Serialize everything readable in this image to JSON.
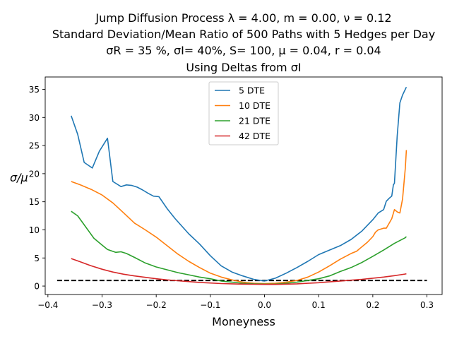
{
  "chart_data": {
    "type": "line",
    "title_lines": [
      "Jump Diffusion Process  λ =  4.00, m =  0.00, ν =  0.12",
      "Standard Deviation/Mean Ratio of 500 Paths with 5 Hedges per Day",
      "σR = 35 %, σI= 40%, S= 100, μ = 0.04, r = 0.04",
      "Using Deltas from σI"
    ],
    "xlabel": "Moneyness",
    "ylabel": "σ/μ",
    "xlim": [
      -0.405,
      0.328
    ],
    "ylim": [
      -1.5,
      37.2
    ],
    "xticks": [
      -0.4,
      -0.3,
      -0.2,
      -0.1,
      0.0,
      0.1,
      0.2,
      0.3
    ],
    "xtick_labels": [
      "−0.4",
      "−0.3",
      "−0.2",
      "−0.1",
      "0.0",
      "0.1",
      "0.2",
      "0.3"
    ],
    "yticks": [
      0,
      5,
      10,
      15,
      20,
      25,
      30,
      35
    ],
    "ytick_labels": [
      "0",
      "5",
      "10",
      "15",
      "20",
      "25",
      "30",
      "35"
    ],
    "grid": false,
    "legend_position": "top-center",
    "reference_line": {
      "y": 1.0,
      "x_range": [
        -0.383,
        0.3
      ],
      "style": "dashed",
      "color": "#000000"
    },
    "series": [
      {
        "name": "5 DTE",
        "color": "#1f77b4",
        "x": [
          -0.357,
          -0.345,
          -0.333,
          -0.318,
          -0.305,
          -0.29,
          -0.28,
          -0.265,
          -0.255,
          -0.245,
          -0.235,
          -0.225,
          -0.215,
          -0.205,
          -0.195,
          -0.18,
          -0.165,
          -0.14,
          -0.12,
          -0.1,
          -0.08,
          -0.06,
          -0.04,
          -0.02,
          0.0,
          0.02,
          0.04,
          0.06,
          0.08,
          0.1,
          0.12,
          0.14,
          0.16,
          0.18,
          0.2,
          0.21,
          0.22,
          0.225,
          0.23,
          0.235,
          0.238,
          0.24,
          0.245,
          0.25,
          0.255,
          0.262
        ],
        "y": [
          30.3,
          27.0,
          22.0,
          21.0,
          24.0,
          26.3,
          18.6,
          17.7,
          18.0,
          17.9,
          17.6,
          17.1,
          16.5,
          16.0,
          15.9,
          13.8,
          12.0,
          9.3,
          7.5,
          5.4,
          3.6,
          2.5,
          1.8,
          1.2,
          0.9,
          1.4,
          2.3,
          3.3,
          4.4,
          5.6,
          6.4,
          7.2,
          8.3,
          9.8,
          11.8,
          13.0,
          13.6,
          15.1,
          15.6,
          16.0,
          18.0,
          18.3,
          26.7,
          32.6,
          34.0,
          35.4
        ]
      },
      {
        "name": "10 DTE",
        "color": "#ff7f0e",
        "x": [
          -0.357,
          -0.34,
          -0.32,
          -0.3,
          -0.28,
          -0.26,
          -0.24,
          -0.22,
          -0.2,
          -0.18,
          -0.16,
          -0.14,
          -0.12,
          -0.1,
          -0.08,
          -0.06,
          -0.04,
          -0.02,
          0.0,
          0.02,
          0.04,
          0.06,
          0.08,
          0.1,
          0.12,
          0.14,
          0.16,
          0.17,
          0.19,
          0.2,
          0.205,
          0.21,
          0.22,
          0.225,
          0.235,
          0.24,
          0.245,
          0.25,
          0.255,
          0.26,
          0.262
        ],
        "y": [
          18.6,
          18.0,
          17.2,
          16.2,
          14.8,
          13.0,
          11.2,
          10.0,
          8.7,
          7.2,
          5.7,
          4.4,
          3.3,
          2.3,
          1.6,
          1.1,
          0.7,
          0.5,
          0.45,
          0.5,
          0.7,
          1.0,
          1.6,
          2.5,
          3.6,
          4.8,
          5.8,
          6.2,
          7.8,
          8.8,
          9.6,
          10.0,
          10.3,
          10.3,
          12.0,
          13.6,
          13.2,
          13.0,
          15.5,
          21.0,
          24.2
        ]
      },
      {
        "name": "21 DTE",
        "color": "#2ca02c",
        "x": [
          -0.357,
          -0.345,
          -0.33,
          -0.315,
          -0.3,
          -0.29,
          -0.275,
          -0.265,
          -0.255,
          -0.24,
          -0.22,
          -0.2,
          -0.18,
          -0.16,
          -0.14,
          -0.12,
          -0.1,
          -0.08,
          -0.06,
          -0.04,
          -0.02,
          0.0,
          0.02,
          0.04,
          0.06,
          0.08,
          0.1,
          0.12,
          0.14,
          0.16,
          0.18,
          0.2,
          0.22,
          0.24,
          0.26,
          0.262
        ],
        "y": [
          13.3,
          12.5,
          10.5,
          8.5,
          7.3,
          6.5,
          6.0,
          6.1,
          5.8,
          5.1,
          4.1,
          3.4,
          2.9,
          2.4,
          2.0,
          1.6,
          1.3,
          0.9,
          0.7,
          0.5,
          0.4,
          0.35,
          0.35,
          0.5,
          0.7,
          1.0,
          1.3,
          1.8,
          2.6,
          3.3,
          4.2,
          5.3,
          6.4,
          7.6,
          8.6,
          8.8
        ]
      },
      {
        "name": "42 DTE",
        "color": "#d62728",
        "x": [
          -0.357,
          -0.34,
          -0.32,
          -0.3,
          -0.28,
          -0.26,
          -0.24,
          -0.22,
          -0.2,
          -0.18,
          -0.16,
          -0.14,
          -0.12,
          -0.1,
          -0.08,
          -0.06,
          -0.04,
          -0.02,
          0.0,
          0.02,
          0.04,
          0.06,
          0.08,
          0.1,
          0.12,
          0.14,
          0.16,
          0.18,
          0.2,
          0.22,
          0.24,
          0.26,
          0.262
        ],
        "y": [
          4.9,
          4.3,
          3.6,
          3.0,
          2.5,
          2.1,
          1.8,
          1.55,
          1.3,
          1.1,
          0.95,
          0.8,
          0.65,
          0.55,
          0.45,
          0.4,
          0.35,
          0.32,
          0.3,
          0.3,
          0.35,
          0.4,
          0.5,
          0.6,
          0.75,
          0.9,
          1.05,
          1.2,
          1.4,
          1.6,
          1.85,
          2.15,
          2.2
        ]
      }
    ]
  }
}
